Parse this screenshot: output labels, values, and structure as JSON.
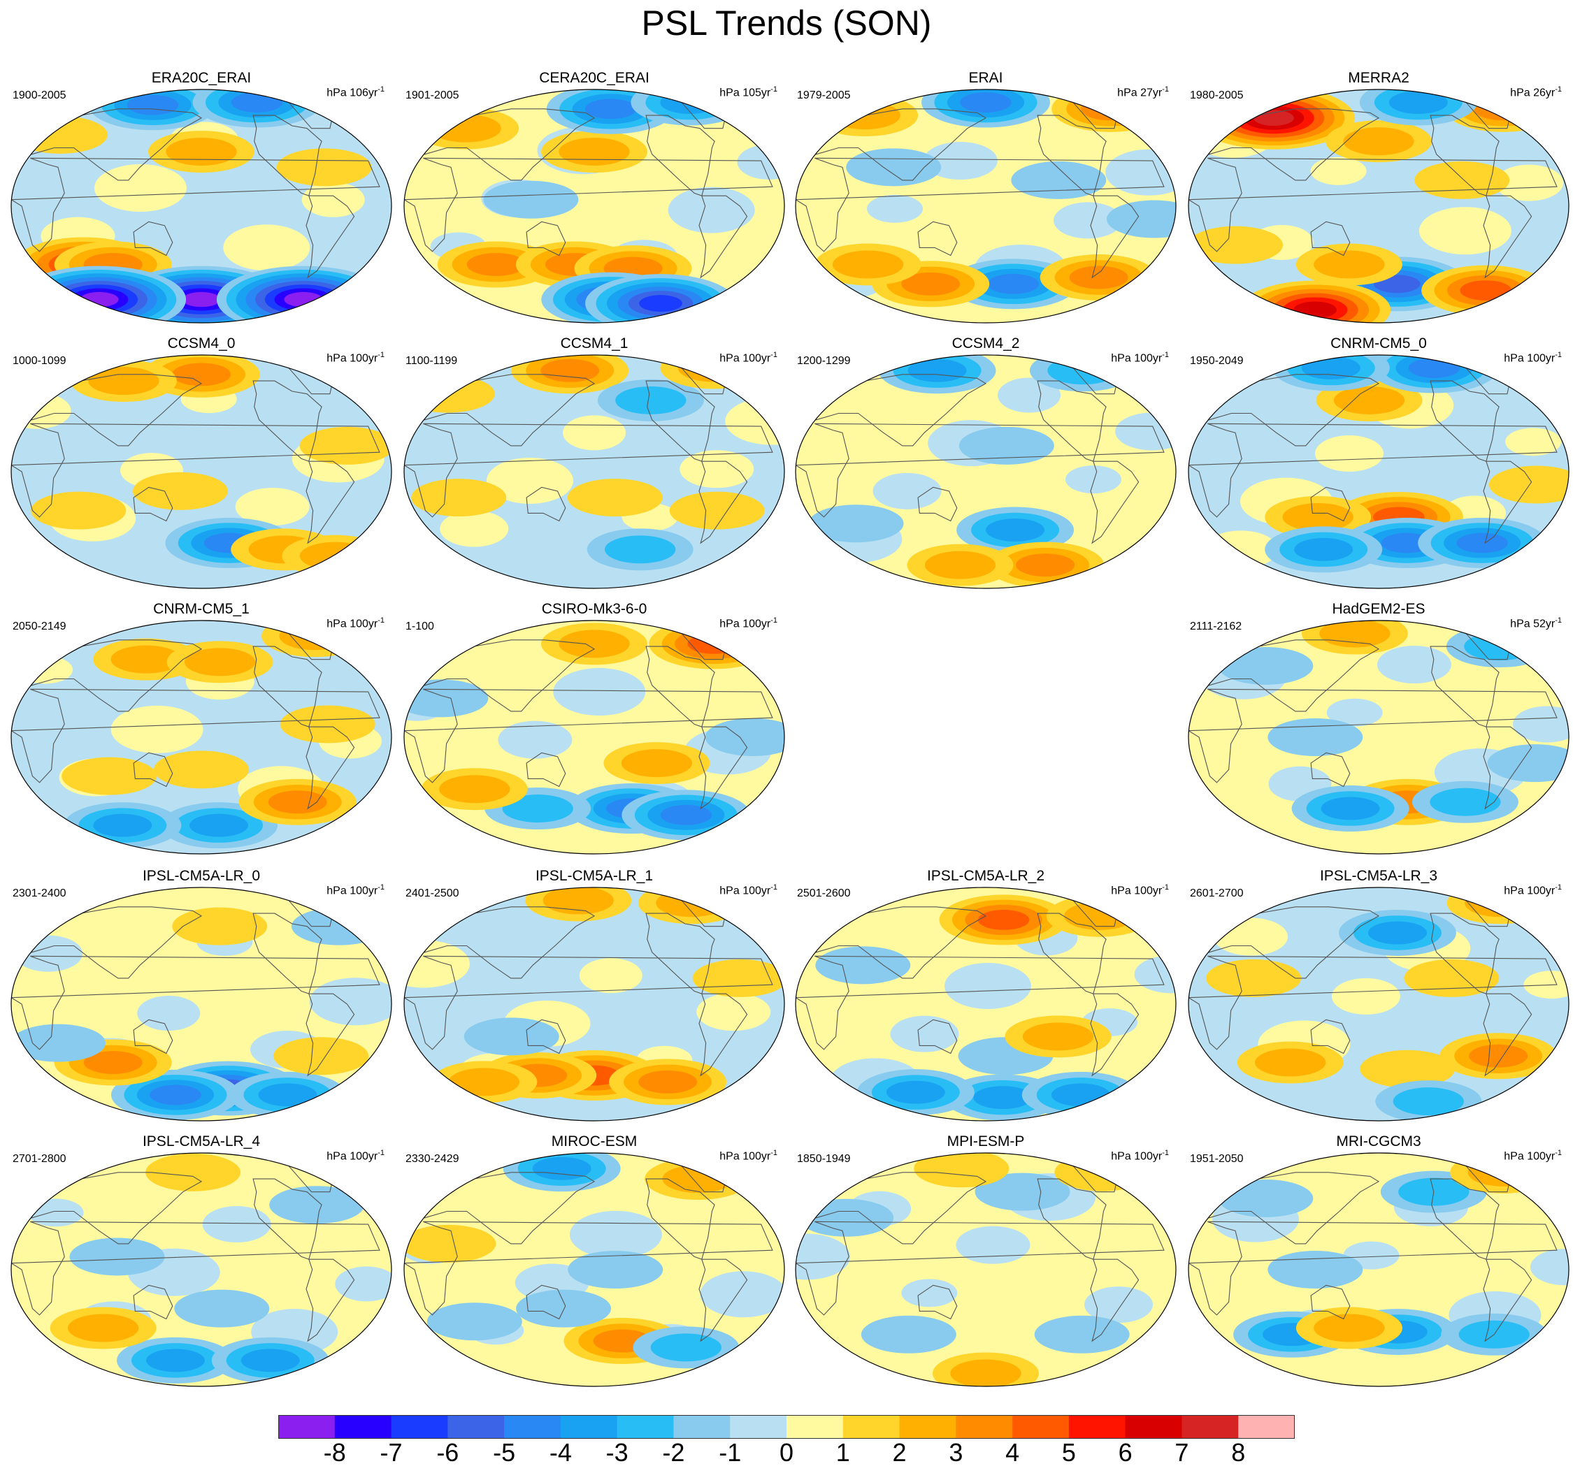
{
  "chart_data": {
    "type": "heatmap",
    "title": "PSL Trends (SON)",
    "projection": "Robinson (global, Pacific-centered)",
    "colorbar": {
      "ticks": [
        "-8",
        "-7",
        "-6",
        "-5",
        "-4",
        "-3",
        "-2",
        "-1",
        "0",
        "1",
        "2",
        "3",
        "4",
        "5",
        "6",
        "7",
        "8"
      ],
      "colors": [
        "#8a1ff0",
        "#2800ff",
        "#1a3cff",
        "#3c64e6",
        "#2a88f4",
        "#1aa2f2",
        "#28bef5",
        "#88cbee",
        "#b8e0f2",
        "#fff9a0",
        "#ffd52b",
        "#ffb000",
        "#ff8c00",
        "#ff5a00",
        "#ff1400",
        "#d80000",
        "#d62424",
        "#ffb2b2"
      ]
    },
    "panels": [
      {
        "title": "ERA20C_ERAI",
        "period": "1900-2005",
        "unit": "hPa 106yr",
        "unit_exp": "-1",
        "row": 0,
        "col": 0,
        "base": "neg",
        "blobs": [
          {
            "lon": 60,
            "lat": -45,
            "v": 5
          },
          {
            "lon": 90,
            "lat": -45,
            "v": 3
          },
          {
            "lon": 180,
            "lat": -72,
            "v": -8
          },
          {
            "lon": 60,
            "lat": -72,
            "v": -8
          },
          {
            "lon": 300,
            "lat": -72,
            "v": -8
          },
          {
            "lon": 180,
            "lat": 42,
            "v": 2
          },
          {
            "lon": 120,
            "lat": 78,
            "v": -4
          },
          {
            "lon": 250,
            "lat": 80,
            "v": -4
          },
          {
            "lon": 30,
            "lat": 55,
            "v": 1
          },
          {
            "lon": 300,
            "lat": 30,
            "v": 1
          }
        ]
      },
      {
        "title": "CERA20C_ERAI",
        "period": "1901-2005",
        "unit": "hPa 105yr",
        "unit_exp": "-1",
        "row": 0,
        "col": 1,
        "base": "pos",
        "blobs": [
          {
            "lon": 80,
            "lat": -45,
            "v": 3
          },
          {
            "lon": 160,
            "lat": -45,
            "v": 3
          },
          {
            "lon": 220,
            "lat": -48,
            "v": 3
          },
          {
            "lon": 200,
            "lat": -72,
            "v": -5
          },
          {
            "lon": 260,
            "lat": -75,
            "v": -6
          },
          {
            "lon": 180,
            "lat": 42,
            "v": 2
          },
          {
            "lon": 200,
            "lat": 75,
            "v": -4
          },
          {
            "lon": 300,
            "lat": 80,
            "v": -3
          },
          {
            "lon": 40,
            "lat": 60,
            "v": 2
          },
          {
            "lon": 120,
            "lat": 5,
            "v": -1
          }
        ]
      },
      {
        "title": "ERAI",
        "period": "1979-2005",
        "unit": "hPa 27yr",
        "unit_exp": "-1",
        "row": 0,
        "col": 2,
        "base": "pos",
        "blobs": [
          {
            "lon": 210,
            "lat": -60,
            "v": -4
          },
          {
            "lon": 120,
            "lat": -60,
            "v": 3
          },
          {
            "lon": 300,
            "lat": -55,
            "v": 3
          },
          {
            "lon": 60,
            "lat": -45,
            "v": 2
          },
          {
            "lon": 180,
            "lat": 80,
            "v": -4
          },
          {
            "lon": 330,
            "lat": 75,
            "v": 3
          },
          {
            "lon": 40,
            "lat": 70,
            "v": 2
          },
          {
            "lon": 90,
            "lat": 30,
            "v": -1
          },
          {
            "lon": 250,
            "lat": 20,
            "v": -1
          },
          {
            "lon": 340,
            "lat": -10,
            "v": -1
          }
        ]
      },
      {
        "title": "MERRA2",
        "period": "1980-2005",
        "unit": "hPa 26yr",
        "unit_exp": "-1",
        "row": 0,
        "col": 3,
        "base": "neg",
        "blobs": [
          {
            "lon": 200,
            "lat": -60,
            "v": -5
          },
          {
            "lon": 100,
            "lat": -80,
            "v": 6
          },
          {
            "lon": 300,
            "lat": -65,
            "v": 4
          },
          {
            "lon": 150,
            "lat": -45,
            "v": 2
          },
          {
            "lon": 60,
            "lat": 68,
            "v": 7
          },
          {
            "lon": 180,
            "lat": 50,
            "v": 2
          },
          {
            "lon": 330,
            "lat": 75,
            "v": 3
          },
          {
            "lon": 230,
            "lat": 80,
            "v": -3
          },
          {
            "lon": 40,
            "lat": -30,
            "v": 1
          },
          {
            "lon": 260,
            "lat": 20,
            "v": 1
          }
        ]
      },
      {
        "title": "CCSM4_0",
        "period": "1000-1099",
        "unit": "hPa 100yr",
        "unit_exp": "-1",
        "row": 1,
        "col": 0,
        "base": "neg",
        "blobs": [
          {
            "lon": 180,
            "lat": 75,
            "v": 3
          },
          {
            "lon": 90,
            "lat": 70,
            "v": 2
          },
          {
            "lon": 210,
            "lat": -55,
            "v": -4
          },
          {
            "lon": 270,
            "lat": -60,
            "v": 2
          },
          {
            "lon": 330,
            "lat": -65,
            "v": 2
          },
          {
            "lon": 60,
            "lat": -30,
            "v": 1
          },
          {
            "lon": 320,
            "lat": 20,
            "v": 1
          },
          {
            "lon": 160,
            "lat": -15,
            "v": 1
          }
        ]
      },
      {
        "title": "CCSM4_1",
        "period": "1100-1199",
        "unit": "hPa 100yr",
        "unit_exp": "-1",
        "row": 1,
        "col": 1,
        "base": "neg",
        "blobs": [
          {
            "lon": 150,
            "lat": 78,
            "v": 3
          },
          {
            "lon": 240,
            "lat": 55,
            "v": -2
          },
          {
            "lon": 50,
            "lat": -20,
            "v": 1
          },
          {
            "lon": 200,
            "lat": -20,
            "v": 1
          },
          {
            "lon": 230,
            "lat": -60,
            "v": -2
          },
          {
            "lon": 300,
            "lat": -30,
            "v": 1
          },
          {
            "lon": 20,
            "lat": 60,
            "v": 1
          },
          {
            "lon": 330,
            "lat": 80,
            "v": 2
          }
        ]
      },
      {
        "title": "CCSM4_2",
        "period": "1200-1299",
        "unit": "hPa 100yr",
        "unit_exp": "-1",
        "row": 1,
        "col": 2,
        "base": "pos",
        "blobs": [
          {
            "lon": 120,
            "lat": 78,
            "v": -3
          },
          {
            "lon": 300,
            "lat": 78,
            "v": -2
          },
          {
            "lon": 210,
            "lat": -45,
            "v": -3
          },
          {
            "lon": 250,
            "lat": -72,
            "v": 3
          },
          {
            "lon": 150,
            "lat": -72,
            "v": 2
          },
          {
            "lon": 50,
            "lat": -40,
            "v": -1
          },
          {
            "lon": 200,
            "lat": 20,
            "v": -1
          }
        ]
      },
      {
        "title": "CNRM-CM5_0",
        "period": "1950-2049",
        "unit": "hPa 100yr",
        "unit_exp": "-1",
        "row": 1,
        "col": 3,
        "base": "neg",
        "blobs": [
          {
            "lon": 200,
            "lat": -35,
            "v": 4
          },
          {
            "lon": 120,
            "lat": -35,
            "v": 2
          },
          {
            "lon": 210,
            "lat": -55,
            "v": -4
          },
          {
            "lon": 290,
            "lat": -55,
            "v": -4
          },
          {
            "lon": 120,
            "lat": -60,
            "v": -3
          },
          {
            "lon": 170,
            "lat": 55,
            "v": 2
          },
          {
            "lon": 250,
            "lat": 80,
            "v": -4
          },
          {
            "lon": 120,
            "lat": 80,
            "v": -3
          },
          {
            "lon": 330,
            "lat": -10,
            "v": 1
          }
        ]
      },
      {
        "title": "CNRM-CM5_1",
        "period": "2050-2149",
        "unit": "hPa 100yr",
        "unit_exp": "-1",
        "row": 2,
        "col": 0,
        "base": "neg",
        "blobs": [
          {
            "lon": 120,
            "lat": 60,
            "v": 2
          },
          {
            "lon": 200,
            "lat": 58,
            "v": 2
          },
          {
            "lon": 320,
            "lat": 78,
            "v": 2
          },
          {
            "lon": 180,
            "lat": -25,
            "v": 1
          },
          {
            "lon": 90,
            "lat": -30,
            "v": 1
          },
          {
            "lon": 200,
            "lat": -68,
            "v": -3
          },
          {
            "lon": 90,
            "lat": -68,
            "v": -3
          },
          {
            "lon": 280,
            "lat": -50,
            "v": 3
          },
          {
            "lon": 300,
            "lat": 10,
            "v": 1
          }
        ]
      },
      {
        "title": "CSIRO-Mk3-6-0",
        "period": "1-100",
        "unit": "hPa 100yr",
        "unit_exp": "-1",
        "row": 2,
        "col": 1,
        "base": "pos",
        "blobs": [
          {
            "lon": 320,
            "lat": 72,
            "v": 4
          },
          {
            "lon": 180,
            "lat": 72,
            "v": 2
          },
          {
            "lon": 220,
            "lat": -55,
            "v": -4
          },
          {
            "lon": 280,
            "lat": -60,
            "v": -4
          },
          {
            "lon": 120,
            "lat": -55,
            "v": -2
          },
          {
            "lon": 60,
            "lat": -40,
            "v": 2
          },
          {
            "lon": 30,
            "lat": 30,
            "v": -1
          },
          {
            "lon": 330,
            "lat": 0,
            "v": -1
          },
          {
            "lon": 240,
            "lat": -20,
            "v": 2
          }
        ]
      },
      null,
      {
        "title": "HadGEM2-ES",
        "period": "2111-2162",
        "unit": "hPa 52yr",
        "unit_exp": "-1",
        "row": 2,
        "col": 3,
        "base": "pos",
        "blobs": [
          {
            "lon": 150,
            "lat": 80,
            "v": 2
          },
          {
            "lon": 210,
            "lat": -50,
            "v": 3
          },
          {
            "lon": 150,
            "lat": -55,
            "v": -3
          },
          {
            "lon": 270,
            "lat": -50,
            "v": -2
          },
          {
            "lon": 320,
            "lat": 70,
            "v": -2
          },
          {
            "lon": 60,
            "lat": 55,
            "v": -1
          },
          {
            "lon": 330,
            "lat": -20,
            "v": -1
          },
          {
            "lon": 120,
            "lat": 0,
            "v": -1
          }
        ]
      },
      {
        "title": "IPSL-CM5A-LR_0",
        "period": "2301-2400",
        "unit": "hPa 100yr",
        "unit_exp": "-1",
        "row": 3,
        "col": 0,
        "base": "pos",
        "blobs": [
          {
            "lon": 210,
            "lat": -65,
            "v": -5
          },
          {
            "lon": 150,
            "lat": -70,
            "v": -4
          },
          {
            "lon": 280,
            "lat": -70,
            "v": -3
          },
          {
            "lon": 90,
            "lat": -45,
            "v": 3
          },
          {
            "lon": 300,
            "lat": -40,
            "v": 1
          },
          {
            "lon": 40,
            "lat": -30,
            "v": -1
          },
          {
            "lon": 200,
            "lat": 60,
            "v": 1
          },
          {
            "lon": 330,
            "lat": 60,
            "v": -1
          }
        ]
      },
      {
        "title": "IPSL-CM5A-LR_1",
        "period": "2401-2500",
        "unit": "hPa 100yr",
        "unit_exp": "-1",
        "row": 3,
        "col": 1,
        "base": "neg",
        "blobs": [
          {
            "lon": 180,
            "lat": -55,
            "v": 4
          },
          {
            "lon": 120,
            "lat": -55,
            "v": 3
          },
          {
            "lon": 260,
            "lat": -60,
            "v": 3
          },
          {
            "lon": 60,
            "lat": -60,
            "v": 2
          },
          {
            "lon": 160,
            "lat": 80,
            "v": 2
          },
          {
            "lon": 300,
            "lat": 78,
            "v": 2
          },
          {
            "lon": 320,
            "lat": 20,
            "v": 1
          },
          {
            "lon": 100,
            "lat": -25,
            "v": -1
          }
        ]
      },
      {
        "title": "IPSL-CM5A-LR_2",
        "period": "2501-2600",
        "unit": "hPa 100yr",
        "unit_exp": "-1",
        "row": 3,
        "col": 2,
        "base": "pos",
        "blobs": [
          {
            "lon": 200,
            "lat": 65,
            "v": 4
          },
          {
            "lon": 310,
            "lat": 68,
            "v": 2
          },
          {
            "lon": 200,
            "lat": -72,
            "v": -3
          },
          {
            "lon": 100,
            "lat": -68,
            "v": -3
          },
          {
            "lon": 290,
            "lat": -70,
            "v": -3
          },
          {
            "lon": 200,
            "lat": -40,
            "v": -1
          },
          {
            "lon": 250,
            "lat": -25,
            "v": 2
          },
          {
            "lon": 60,
            "lat": 30,
            "v": -1
          }
        ]
      },
      {
        "title": "IPSL-CM5A-LR_3",
        "period": "2601-2700",
        "unit": "hPa 100yr",
        "unit_exp": "-1",
        "row": 3,
        "col": 3,
        "base": "neg",
        "blobs": [
          {
            "lon": 200,
            "lat": 55,
            "v": -3
          },
          {
            "lon": 300,
            "lat": -40,
            "v": 3
          },
          {
            "lon": 90,
            "lat": -45,
            "v": 2
          },
          {
            "lon": 210,
            "lat": -50,
            "v": 1
          },
          {
            "lon": 330,
            "lat": 78,
            "v": 2
          },
          {
            "lon": 60,
            "lat": 20,
            "v": 1
          },
          {
            "lon": 250,
            "lat": 20,
            "v": 1
          },
          {
            "lon": 240,
            "lat": -75,
            "v": -2
          }
        ]
      },
      {
        "title": "IPSL-CM5A-LR_4",
        "period": "2701-2800",
        "unit": "hPa 100yr",
        "unit_exp": "-1",
        "row": 4,
        "col": 0,
        "base": "pos",
        "blobs": [
          {
            "lon": 150,
            "lat": -70,
            "v": -3
          },
          {
            "lon": 260,
            "lat": -70,
            "v": -3
          },
          {
            "lon": 80,
            "lat": -45,
            "v": 2
          },
          {
            "lon": 200,
            "lat": -30,
            "v": -1
          },
          {
            "lon": 100,
            "lat": 10,
            "v": -1
          },
          {
            "lon": 170,
            "lat": 75,
            "v": 1
          },
          {
            "lon": 300,
            "lat": 50,
            "v": -1
          }
        ]
      },
      {
        "title": "MIROC-ESM",
        "period": "2330-2429",
        "unit": "hPa 100yr",
        "unit_exp": "-1",
        "row": 4,
        "col": 1,
        "base": "pos",
        "blobs": [
          {
            "lon": 140,
            "lat": 78,
            "v": -3
          },
          {
            "lon": 300,
            "lat": 70,
            "v": 2
          },
          {
            "lon": 210,
            "lat": -55,
            "v": 3
          },
          {
            "lon": 280,
            "lat": -60,
            "v": -2
          },
          {
            "lon": 60,
            "lat": -40,
            "v": -1
          },
          {
            "lon": 200,
            "lat": 0,
            "v": -1
          },
          {
            "lon": 40,
            "lat": 20,
            "v": 1
          },
          {
            "lon": 150,
            "lat": -30,
            "v": -1
          }
        ]
      },
      {
        "title": "MPI-ESM-P",
        "period": "1850-1949",
        "unit": "hPa 100yr",
        "unit_exp": "-1",
        "row": 4,
        "col": 2,
        "base": "pos",
        "blobs": [
          {
            "lon": 180,
            "lat": -80,
            "v": 2
          },
          {
            "lon": 100,
            "lat": -50,
            "v": -1
          },
          {
            "lon": 280,
            "lat": -50,
            "v": -1
          },
          {
            "lon": 40,
            "lat": 40,
            "v": -1
          },
          {
            "lon": 220,
            "lat": 60,
            "v": -1
          },
          {
            "lon": 320,
            "lat": 75,
            "v": 1
          },
          {
            "lon": 150,
            "lat": 78,
            "v": 1
          }
        ]
      },
      {
        "title": "MRI-CGCM3",
        "period": "1951-2050",
        "unit": "hPa 100yr",
        "unit_exp": "-1",
        "row": 4,
        "col": 3,
        "base": "pos",
        "blobs": [
          {
            "lon": 90,
            "lat": -50,
            "v": -3
          },
          {
            "lon": 200,
            "lat": -48,
            "v": -3
          },
          {
            "lon": 300,
            "lat": -50,
            "v": -2
          },
          {
            "lon": 150,
            "lat": -45,
            "v": 2
          },
          {
            "lon": 240,
            "lat": 60,
            "v": -2
          },
          {
            "lon": 330,
            "lat": 75,
            "v": 2
          },
          {
            "lon": 60,
            "lat": 55,
            "v": -1
          },
          {
            "lon": 120,
            "lat": 0,
            "v": -1
          }
        ]
      }
    ]
  }
}
